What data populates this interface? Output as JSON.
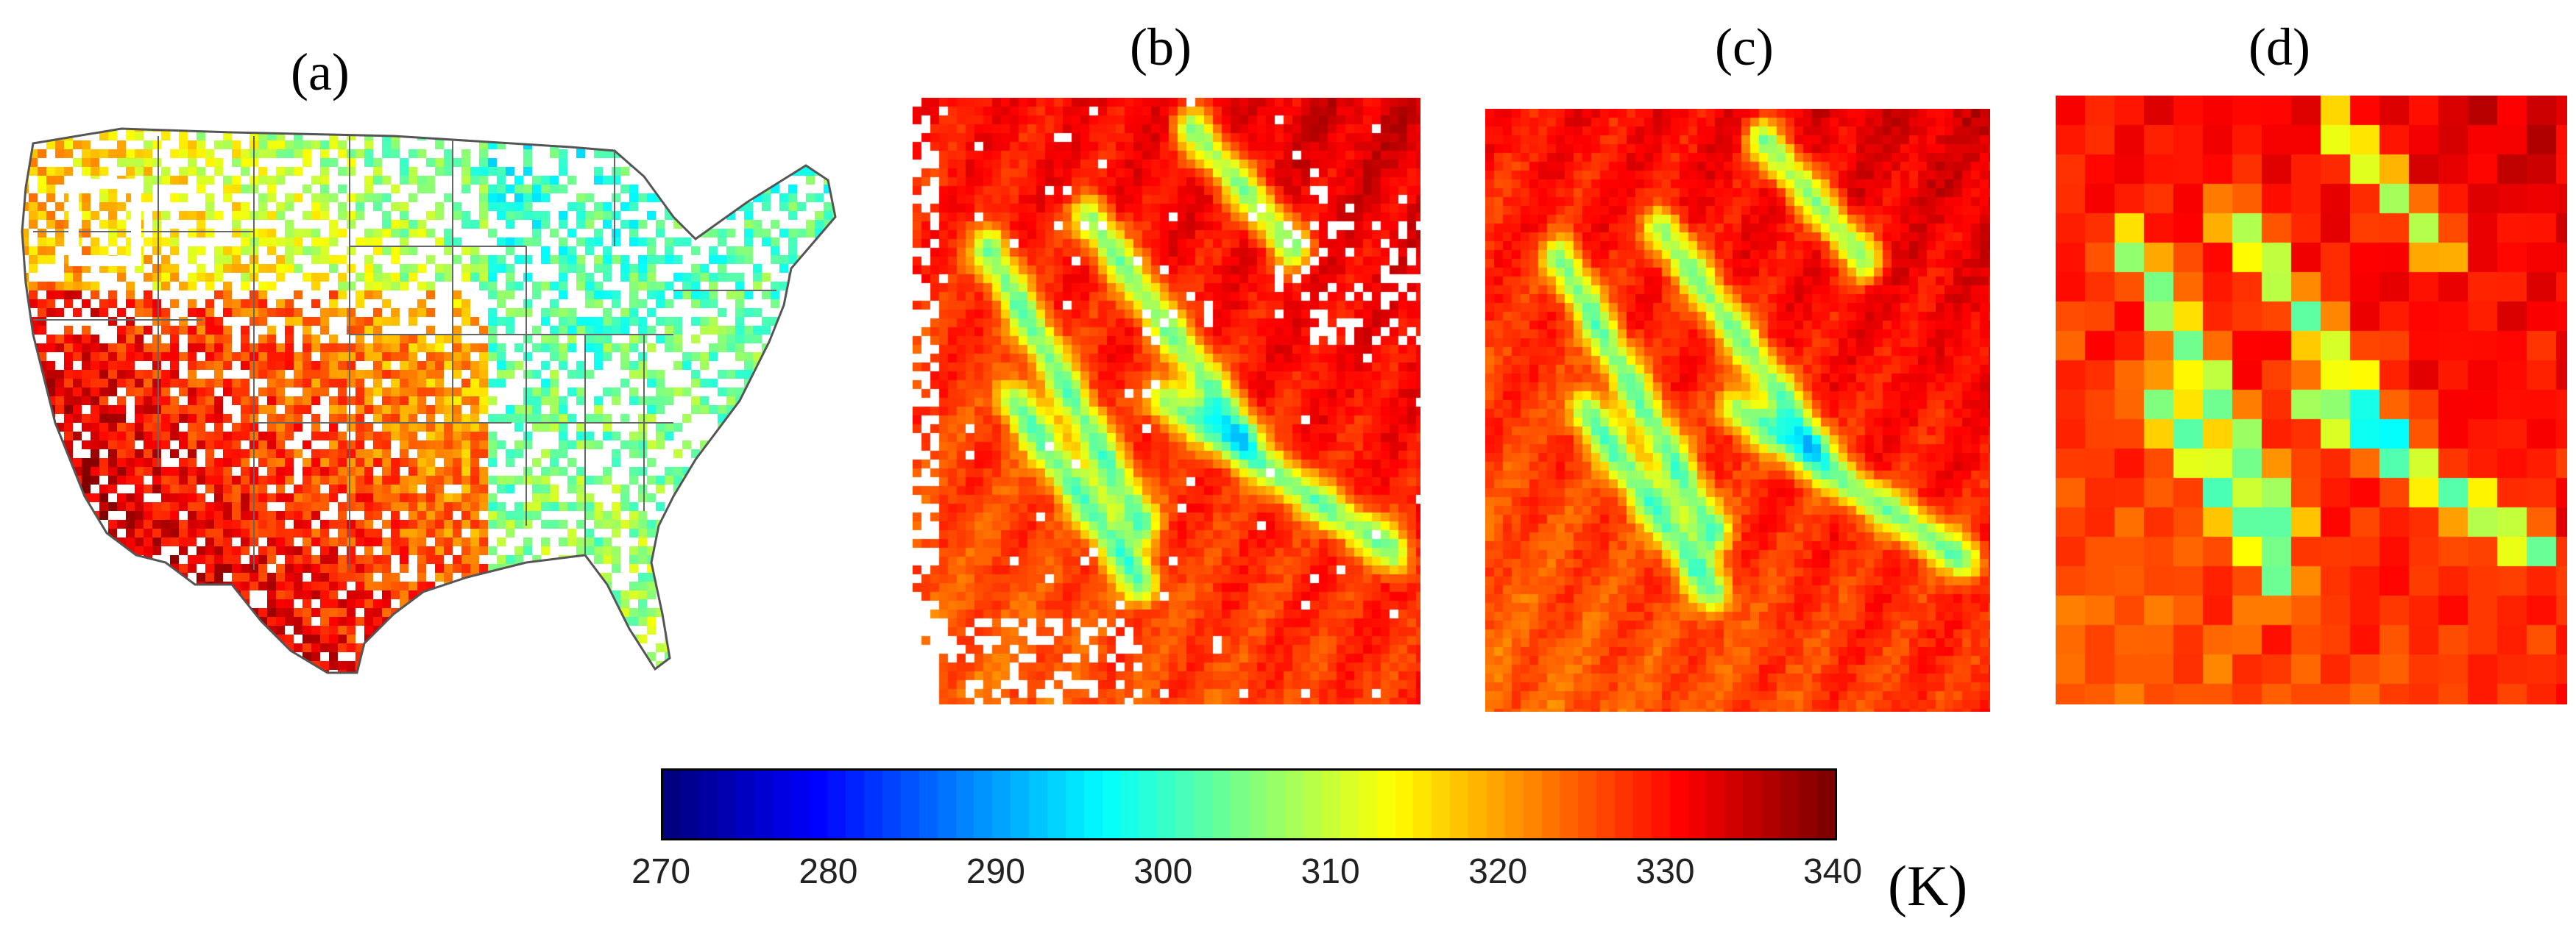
{
  "figure": {
    "panels": [
      {
        "id": "a",
        "label": "(a)",
        "content": "map-of-us-land-surface-temperature"
      },
      {
        "id": "b",
        "label": "(b)",
        "content": "zoomed-lst-with-gaps"
      },
      {
        "id": "c",
        "label": "(c)",
        "content": "zoomed-lst-gap-filled"
      },
      {
        "id": "d",
        "label": "(d)",
        "content": "coarse-resolution-lst"
      }
    ],
    "colorbar": {
      "min": 270,
      "max": 340,
      "ticks": [
        "270",
        "280",
        "290",
        "300",
        "310",
        "320",
        "330",
        "340"
      ],
      "unit": "(K)",
      "colormap": "jet"
    }
  },
  "colors": {
    "background": "#ffffff",
    "border_lines": "#555555",
    "highlight_box": "#ffffff"
  }
}
